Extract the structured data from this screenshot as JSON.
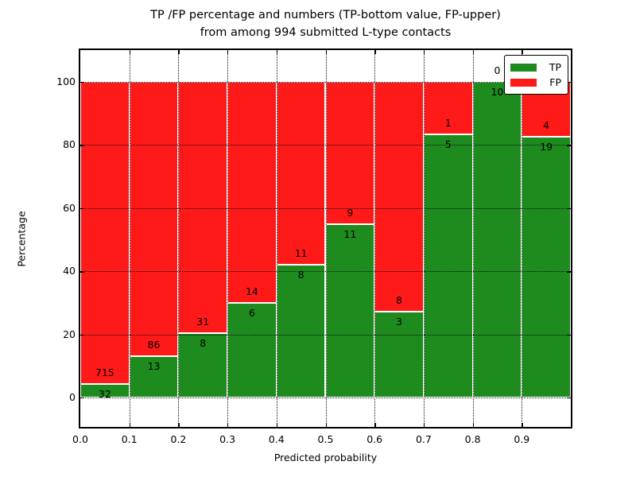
{
  "chart_data": {
    "type": "bar",
    "stacked": true,
    "title": "TP /FP percentage and numbers (TP-bottom value, FP-upper)",
    "subtitle": "from among 994 submitted L-type contacts",
    "xlabel": "Predicted probability",
    "ylabel": "Percentage",
    "total_contacts": 994,
    "xlim": [
      0.0,
      1.0
    ],
    "ylim": [
      -9.5,
      109.5
    ],
    "bin_width": 0.1,
    "grid": "dotted both axes",
    "xtick_labels": [
      "0.0",
      "0.1",
      "0.2",
      "0.3",
      "0.4",
      "0.5",
      "0.6",
      "0.7",
      "0.8",
      "0.9"
    ],
    "ytick_values": [
      0,
      20,
      40,
      60,
      80,
      100
    ],
    "ytick_labels": [
      "0",
      "20",
      "40",
      "60",
      "80",
      "100"
    ],
    "categories": [
      "0.0-0.1",
      "0.1-0.2",
      "0.2-0.3",
      "0.3-0.4",
      "0.4-0.5",
      "0.5-0.6",
      "0.6-0.7",
      "0.7-0.8",
      "0.8-0.9",
      "0.9-1.0"
    ],
    "series": [
      {
        "name": "TP",
        "color": "#1e8b1e",
        "counts": [
          32,
          13,
          8,
          6,
          8,
          11,
          3,
          5,
          10,
          19
        ],
        "pct": [
          4.28,
          13.13,
          20.51,
          30.0,
          42.11,
          55.0,
          27.27,
          83.33,
          100.0,
          82.61
        ]
      },
      {
        "name": "FP",
        "color": "#ff1a1a",
        "counts": [
          715,
          86,
          31,
          14,
          11,
          9,
          8,
          1,
          0,
          4
        ],
        "pct": [
          95.72,
          86.87,
          79.49,
          70.0,
          57.89,
          45.0,
          72.73,
          16.67,
          0.0,
          17.39
        ]
      }
    ],
    "legend": {
      "position": "upper right",
      "entries": [
        {
          "label": "TP",
          "color": "#1e8b1e"
        },
        {
          "label": "FP",
          "color": "#ff1a1a"
        }
      ]
    }
  }
}
